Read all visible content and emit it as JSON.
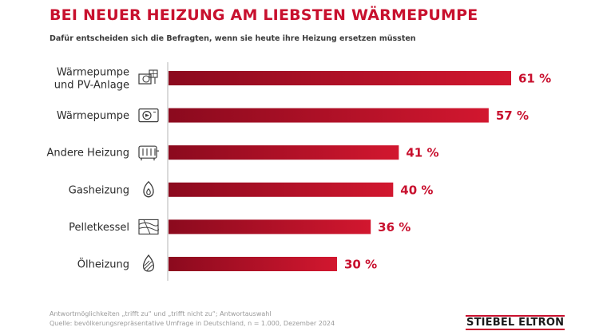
{
  "title": "BEI NEUER HEIZUNG AM LIEBSTEN WÄRMEPUMPE",
  "subtitle": "Dafür entscheiden sich die Befragten, wenn sie heute ihre Heizung ersetzen müssten",
  "colors": {
    "accent": "#c8102e",
    "bar_dark": "#8b0a1e",
    "bar_light": "#d2172f"
  },
  "chart_data": {
    "type": "bar",
    "orientation": "horizontal",
    "categories": [
      "Wärmepumpe und PV-Anlage",
      "Wärmepumpe",
      "Andere Heizung",
      "Gasheizung",
      "Pelletkessel",
      "Ölheizung"
    ],
    "category_lines": [
      [
        "Wärmepumpe",
        "und PV-Anlage"
      ],
      [
        "Wärmepumpe"
      ],
      [
        "Andere Heizung"
      ],
      [
        "Gasheizung"
      ],
      [
        "Pelletkessel"
      ],
      [
        "Ölheizung"
      ]
    ],
    "icons": [
      "heat-pump-solar-icon",
      "heat-pump-icon",
      "radiator-icon",
      "gas-flame-icon",
      "pellet-wood-icon",
      "oil-drop-icon"
    ],
    "values": [
      61,
      57,
      41,
      40,
      36,
      30
    ],
    "value_labels": [
      "61 %",
      "57 %",
      "41 %",
      "40 %",
      "36 %",
      "30 %"
    ],
    "unit": "%",
    "xlim": [
      0,
      61
    ],
    "grid": false,
    "legend": "none"
  },
  "footnotes": [
    "Antwortmöglichkeiten „trifft zu“ und „trifft nicht zu“; Antwortauswahl",
    "Quelle: bevölkerungsrepräsentative Umfrage in Deutschland, n = 1.000, Dezember 2024"
  ],
  "brand": "STIEBEL ELTRON"
}
